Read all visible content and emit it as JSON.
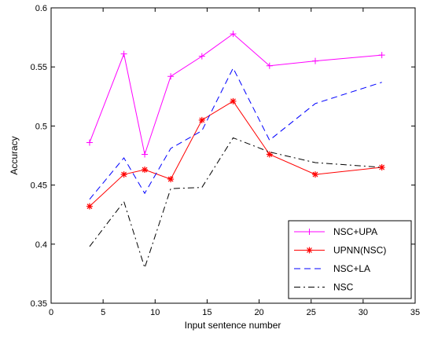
{
  "chart_data": {
    "type": "line",
    "xlabel": "Input sentence number",
    "ylabel": "Accuracy",
    "xlim": [
      0,
      35
    ],
    "ylim": [
      0.35,
      0.6
    ],
    "xticks": [
      0,
      5,
      10,
      15,
      20,
      25,
      30,
      35
    ],
    "yticks": [
      0.35,
      0.4,
      0.45,
      0.5,
      0.55,
      0.6
    ],
    "xtick_labels": [
      "0",
      "5",
      "10",
      "15",
      "20",
      "25",
      "30",
      "35"
    ],
    "ytick_labels": [
      "0.35",
      "0.4",
      "0.45",
      "0.5",
      "0.55",
      "0.6"
    ],
    "grid": false,
    "legend_position": "bottom-right",
    "series": [
      {
        "name": "NSC+UPA",
        "color": "#ff00ff",
        "line_style": "solid",
        "marker": "plus",
        "x": [
          3.7,
          7,
          9,
          11.5,
          14.5,
          17.5,
          21,
          25.4,
          31.8
        ],
        "y": [
          0.486,
          0.561,
          0.476,
          0.542,
          0.559,
          0.578,
          0.551,
          0.555,
          0.56
        ]
      },
      {
        "name": "UPNN(NSC)",
        "color": "#ff0000",
        "line_style": "solid",
        "marker": "asterisk",
        "x": [
          3.7,
          7,
          9,
          11.5,
          14.5,
          17.5,
          21,
          25.4,
          31.8
        ],
        "y": [
          0.432,
          0.459,
          0.463,
          0.455,
          0.505,
          0.521,
          0.476,
          0.459,
          0.465
        ]
      },
      {
        "name": "NSC+LA",
        "color": "#0000ff",
        "line_style": "dashed",
        "marker": "none",
        "x": [
          3.7,
          7,
          9,
          11.5,
          14.5,
          17.5,
          21,
          25.4,
          31.8
        ],
        "y": [
          0.438,
          0.473,
          0.443,
          0.481,
          0.496,
          0.549,
          0.488,
          0.519,
          0.537
        ]
      },
      {
        "name": "NSC",
        "color": "#000000",
        "line_style": "dashdot",
        "marker": "none",
        "x": [
          3.7,
          7,
          9,
          11.5,
          14.5,
          17.5,
          21,
          25.4,
          31.8
        ],
        "y": [
          0.398,
          0.436,
          0.38,
          0.447,
          0.448,
          0.49,
          0.478,
          0.469,
          0.465
        ]
      }
    ]
  }
}
